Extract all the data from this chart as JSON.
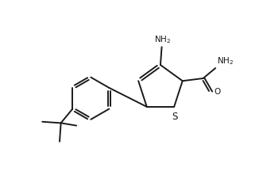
{
  "bg_color": "#ffffff",
  "line_color": "#1a1a1a",
  "line_width": 1.4,
  "font_size": 7.5,
  "figsize": [
    3.26,
    2.16
  ],
  "dpi": 100,
  "xlim": [
    0,
    10
  ],
  "ylim": [
    0,
    6.6
  ]
}
